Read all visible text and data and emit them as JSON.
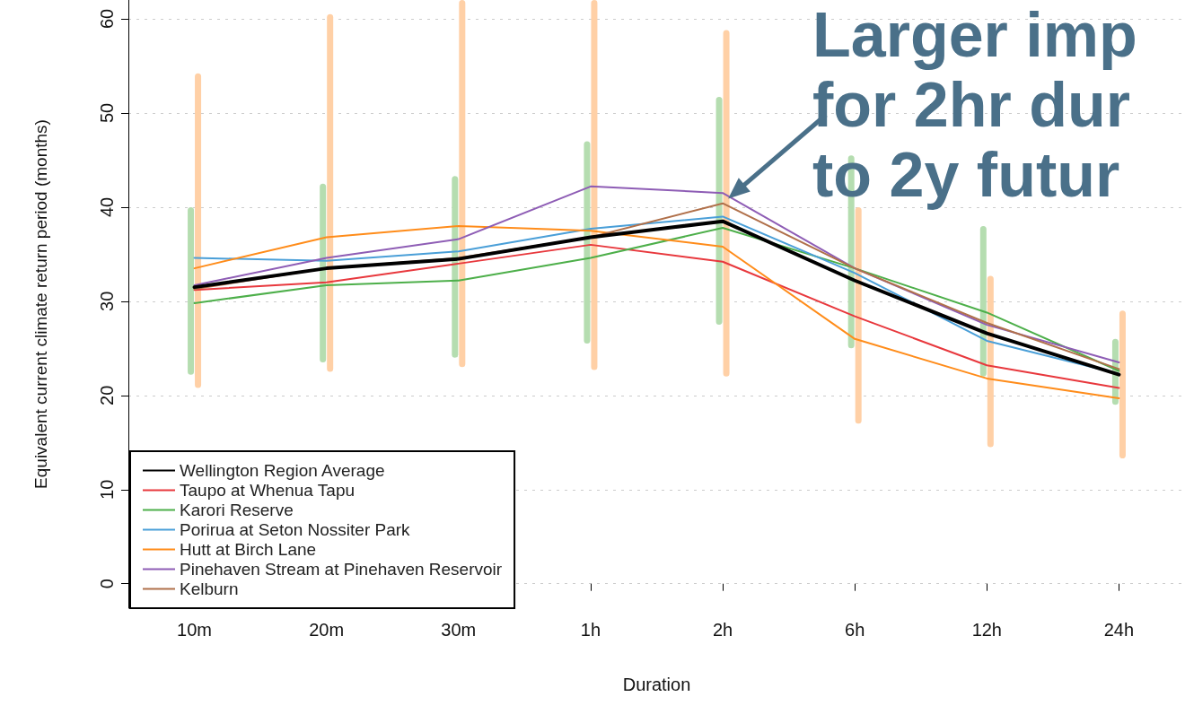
{
  "chart_data": {
    "type": "line",
    "xlabel": "Duration",
    "ylabel": "Equivalent current climate return period (months)",
    "annotations": [
      {
        "text": "Larger imp\nfor 2hr dur\nto 2y futur",
        "x": "2h",
        "y": 40.4
      }
    ],
    "categories": [
      "10m",
      "20m",
      "30m",
      "1h",
      "2h",
      "6h",
      "12h",
      "24h"
    ],
    "ylim": [
      -2.6,
      62
    ],
    "yticks": [
      0,
      10,
      20,
      30,
      40,
      50,
      60
    ],
    "grid": "y",
    "legend": "bottom left",
    "marker": "none",
    "line_style": "solid",
    "series": [
      {
        "type": "bar",
        "color": "#b5ddb0",
        "base": [
          22.2,
          23.5,
          24,
          25.5,
          27.5,
          25,
          22,
          19
        ],
        "values": [
          17.8,
          19,
          19.3,
          21.5,
          24.2,
          20.5,
          16,
          7
        ]
      },
      {
        "type": "bar",
        "color": "#ffd0a6",
        "base": [
          20.8,
          22.5,
          23,
          22.7,
          22,
          17,
          14.5,
          13.3
        ],
        "values": [
          33.4,
          38,
          39,
          39.3,
          36.8,
          23,
          18.2,
          15.7
        ]
      },
      {
        "name": "Wellington Region Average",
        "color": "#000000",
        "values": [
          31.5,
          33.5,
          34.5,
          36.8,
          38.5,
          32.2,
          26.6,
          22.2
        ]
      },
      {
        "name": "Taupo at Whenua Tapu",
        "color": "#e8383d",
        "values": [
          31.2,
          32,
          34,
          36,
          34.2,
          28.4,
          23.2,
          20.8
        ]
      },
      {
        "name": "Karori Reserve",
        "color": "#4daf4a",
        "values": [
          29.8,
          31.7,
          32.2,
          34.6,
          37.8,
          33.5,
          28.8,
          22.6
        ]
      },
      {
        "name": "Porirua at Seton Nossiter Park",
        "color": "#4a9fd8",
        "values": [
          34.6,
          34.3,
          35.3,
          37.7,
          39,
          33,
          25.8,
          22.3
        ]
      },
      {
        "name": "Hutt at Birch Lane",
        "color": "#ff8c1a",
        "values": [
          33.5,
          36.8,
          38,
          37.5,
          35.8,
          26,
          21.8,
          19.7
        ]
      },
      {
        "name": "Pinehaven Stream at Pinehaven Reservoir",
        "color": "#8e5db5",
        "values": [
          31.7,
          34.6,
          36.6,
          42.2,
          41.5,
          33.5,
          27.5,
          23.5
        ]
      },
      {
        "name": "Kelburn",
        "color": "#b0704a",
        "values": [
          31.3,
          33.5,
          34.6,
          36.8,
          40.4,
          33.5,
          27.7,
          22.8
        ]
      }
    ]
  }
}
